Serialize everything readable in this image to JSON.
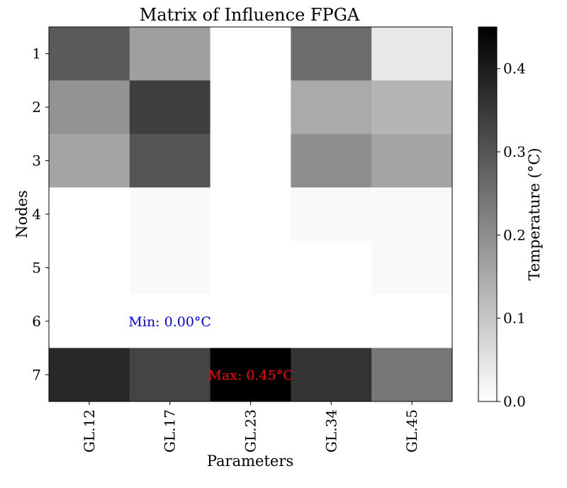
{
  "chart_data": {
    "type": "heatmap",
    "title": "Matrix of Influence FPGA",
    "xlabel": "Parameters",
    "ylabel": "Nodes",
    "x_categories": [
      "GL.12",
      "GL.17",
      "GL.23",
      "GL.34",
      "GL.45"
    ],
    "y_categories": [
      "1",
      "2",
      "3",
      "4",
      "5",
      "6",
      "7"
    ],
    "values": [
      [
        0.29,
        0.17,
        0.0,
        0.26,
        0.04
      ],
      [
        0.19,
        0.34,
        0.0,
        0.15,
        0.13
      ],
      [
        0.16,
        0.3,
        0.0,
        0.2,
        0.16
      ],
      [
        0.0,
        0.01,
        0.0,
        0.01,
        0.01
      ],
      [
        0.0,
        0.01,
        0.0,
        0.0,
        0.01
      ],
      [
        0.0,
        0.0,
        0.0,
        0.0,
        0.0
      ],
      [
        0.38,
        0.33,
        0.45,
        0.36,
        0.24
      ]
    ],
    "colormap": "greys",
    "vmin": 0.0,
    "vmax": 0.45,
    "colorbar": {
      "label": "Temperature (°C)",
      "ticks": [
        "0.0",
        "0.1",
        "0.2",
        "0.3",
        "0.4"
      ],
      "tick_values": [
        0.0,
        0.1,
        0.2,
        0.3,
        0.4
      ]
    },
    "annotations": {
      "min": {
        "text": "Min: 0.00°C",
        "color": "#0000ff",
        "row": 5,
        "col": 1
      },
      "max": {
        "text": "Max: 0.45°C",
        "color": "#ff0000",
        "row": 6,
        "col": 2
      }
    }
  }
}
